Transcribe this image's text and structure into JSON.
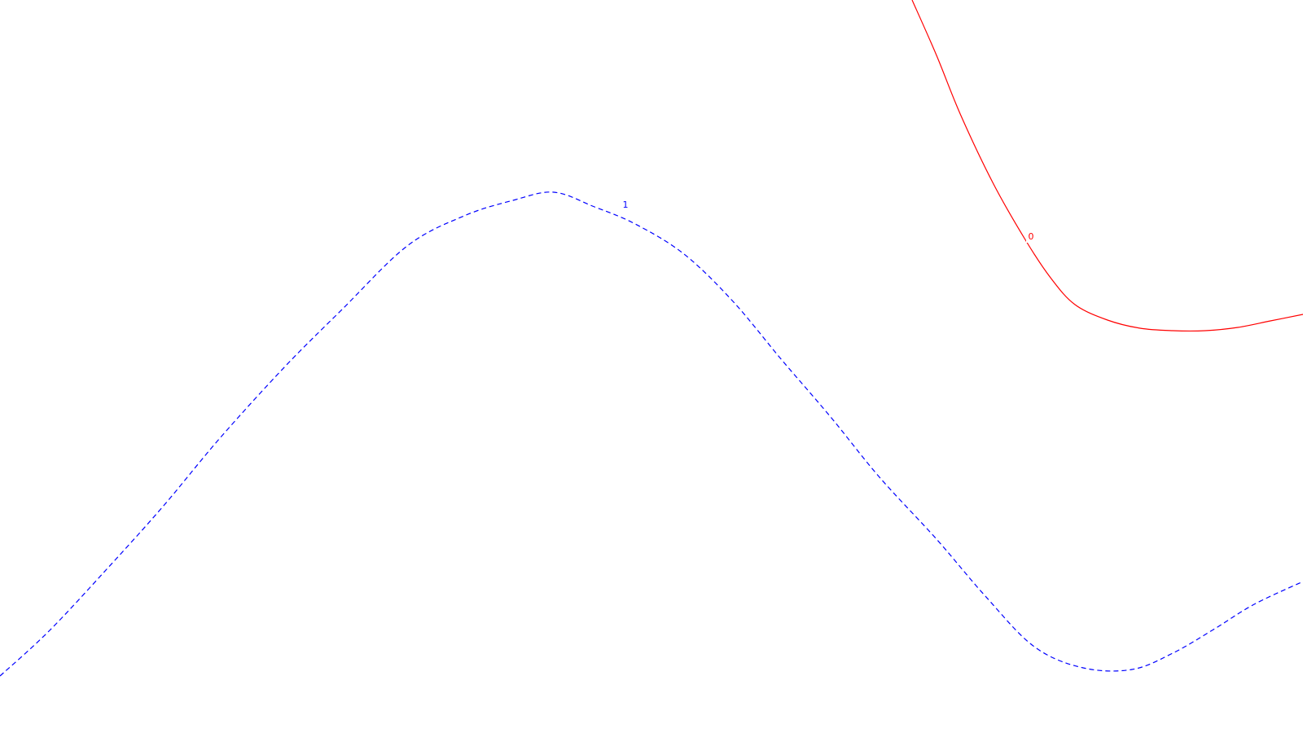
{
  "chart_data": {
    "type": "line",
    "title": "",
    "xlabel": "",
    "ylabel": "",
    "grid": false,
    "legend": "none",
    "series": [
      {
        "label": "1",
        "color": "#0000ff",
        "dash": "dashed",
        "points": [
          [
            0,
            8.3
          ],
          [
            0.6,
            7.75
          ],
          [
            1.3,
            7.0
          ],
          [
            2.0,
            6.22
          ],
          [
            2.7,
            5.38
          ],
          [
            3.5,
            4.5
          ],
          [
            4.2,
            3.8
          ],
          [
            5.0,
            3.02
          ],
          [
            5.7,
            2.65
          ],
          [
            6.3,
            2.46
          ],
          [
            6.8,
            2.36
          ],
          [
            7.3,
            2.54
          ],
          [
            7.8,
            2.75
          ],
          [
            8.4,
            3.12
          ],
          [
            9.0,
            3.7
          ],
          [
            9.6,
            4.42
          ],
          [
            10.2,
            5.12
          ],
          [
            10.8,
            5.86
          ],
          [
            11.5,
            6.62
          ],
          [
            12.1,
            7.32
          ],
          [
            12.7,
            7.94
          ],
          [
            13.3,
            8.2
          ],
          [
            13.9,
            8.22
          ],
          [
            14.4,
            8.02
          ],
          [
            14.9,
            7.73
          ],
          [
            15.4,
            7.42
          ],
          [
            16.0,
            7.14
          ]
        ]
      },
      {
        "label": "0",
        "color": "#ff0000",
        "dash": "solid",
        "points": [
          [
            11.2,
            0.0
          ],
          [
            11.5,
            0.68
          ],
          [
            11.8,
            1.42
          ],
          [
            12.2,
            2.26
          ],
          [
            12.6,
            2.96
          ],
          [
            12.9,
            3.41
          ],
          [
            13.2,
            3.74
          ],
          [
            13.6,
            3.93
          ],
          [
            14.0,
            4.03
          ],
          [
            14.4,
            4.06
          ],
          [
            14.8,
            4.06
          ],
          [
            15.2,
            4.02
          ],
          [
            15.6,
            3.94
          ],
          [
            16.0,
            3.86
          ]
        ]
      }
    ],
    "xlim": [
      0,
      16
    ],
    "ylim": [
      0,
      9
    ],
    "y_inverted": true,
    "annotations": [
      {
        "text": "1",
        "x": 7.68,
        "y": 2.52,
        "color": "#0000ff"
      },
      {
        "text": "0",
        "x": 12.66,
        "y": 2.91,
        "color": "#ff0000"
      }
    ]
  }
}
